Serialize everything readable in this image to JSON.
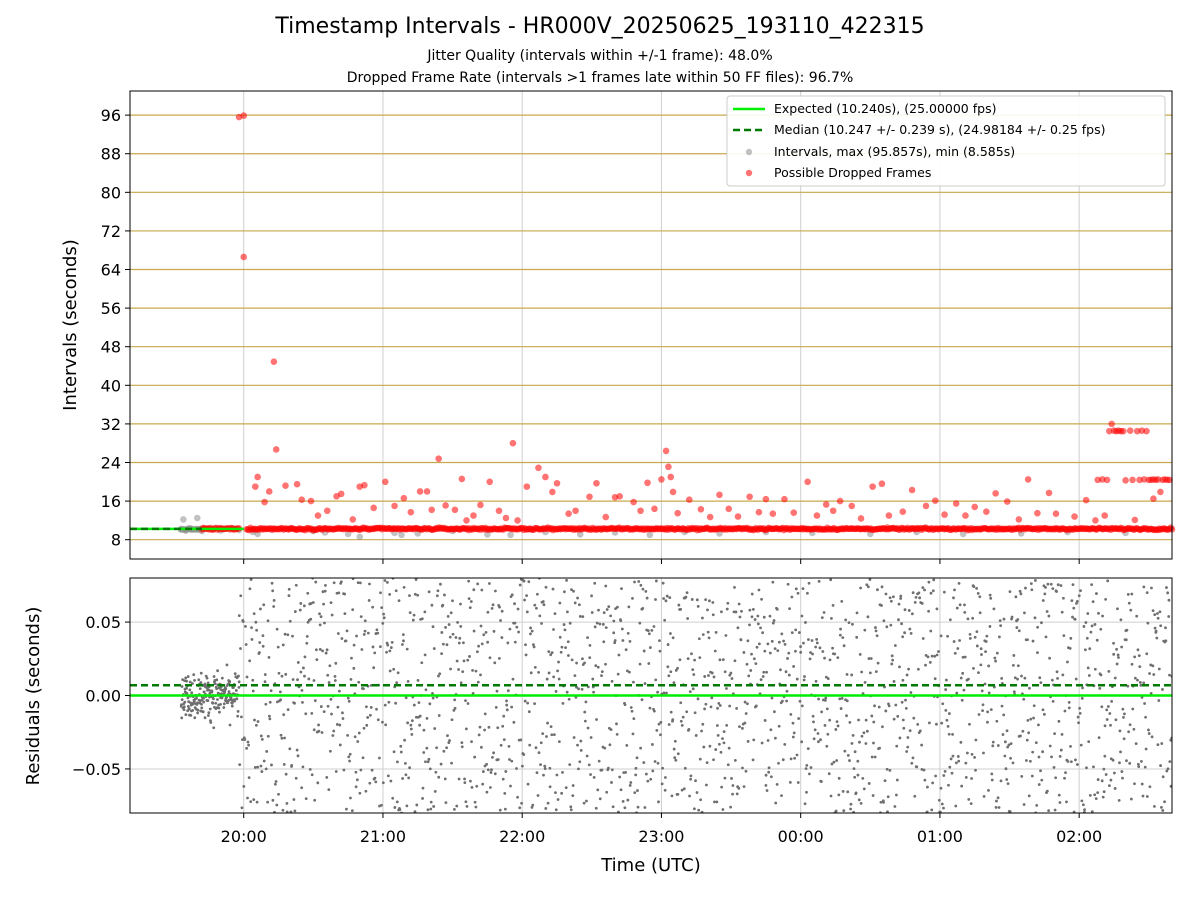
{
  "title": "Timestamp Intervals - HR000V_20250625_193110_422315",
  "subtitle_jitter": "Jitter Quality (intervals within +/-1 frame): 48.0%",
  "subtitle_dropped": "Dropped Frame Rate (intervals >1 frames late within 50 FF files): 96.7%",
  "colors": {
    "expected_line": "#00ee00",
    "median_line": "#007a00",
    "intervals_points": "#8f8f8f",
    "dropped_points": "#ff0000",
    "residual_points": "#6f6f6f",
    "grid_major": "#c8a84c",
    "grid_minor": "#cfcfcf"
  },
  "chart_data": [
    {
      "type": "scatter",
      "ylabel": "Intervals (seconds)",
      "ylim": [
        4,
        101
      ],
      "xlim": [
        "19:11",
        "02:40"
      ],
      "y_ticks": [
        8,
        16,
        24,
        32,
        40,
        48,
        56,
        64,
        72,
        80,
        88,
        96
      ],
      "x_ticks": [
        "20:00",
        "21:00",
        "22:00",
        "23:00",
        "00:00",
        "01:00",
        "02:00"
      ],
      "grid": true,
      "legend_position": "top-right",
      "legend": [
        {
          "label": "Expected (10.240s), (25.00000 fps)",
          "kind": "line-solid",
          "color": "#00ee00"
        },
        {
          "label": "Median (10.247 +/- 0.239 s), (24.98184 +/- 0.25 fps)",
          "kind": "line-dashed",
          "color": "#007a00"
        },
        {
          "label": "Intervals, max (95.857s), min (8.585s)",
          "kind": "dot",
          "color": "#8f8f8f"
        },
        {
          "label": "Possible Dropped Frames",
          "kind": "dot",
          "color": "#ff0000"
        }
      ],
      "expected_value": 10.24,
      "median_value": 10.247,
      "series": [
        {
          "name": "Intervals, max (95.857s), min (8.585s)",
          "points": [
            {
              "x": "19:33",
              "y": 10.1
            },
            {
              "x": "19:34",
              "y": 12.2
            },
            {
              "x": "19:35",
              "y": 9.9
            },
            {
              "x": "19:37",
              "y": 10.4
            },
            {
              "x": "19:40",
              "y": 12.5
            },
            {
              "x": "19:42",
              "y": 9.8
            },
            {
              "x": "19:46",
              "y": 10.2
            },
            {
              "x": "19:50",
              "y": 9.9
            },
            {
              "x": "19:55",
              "y": 10.3
            },
            {
              "x": "19:58",
              "y": 10.0
            },
            {
              "x": "20:04",
              "y": 9.6
            },
            {
              "x": "20:06",
              "y": 9.2
            },
            {
              "x": "20:20",
              "y": 10.3
            },
            {
              "x": "20:30",
              "y": 9.8
            },
            {
              "x": "20:35",
              "y": 9.5
            },
            {
              "x": "20:45",
              "y": 9.2
            },
            {
              "x": "20:50",
              "y": 8.6
            },
            {
              "x": "21:05",
              "y": 9.4
            },
            {
              "x": "21:08",
              "y": 9.0
            },
            {
              "x": "21:15",
              "y": 9.3
            },
            {
              "x": "21:30",
              "y": 9.8
            },
            {
              "x": "21:45",
              "y": 9.1
            },
            {
              "x": "21:55",
              "y": 9.0
            },
            {
              "x": "22:10",
              "y": 9.6
            },
            {
              "x": "22:25",
              "y": 9.1
            },
            {
              "x": "22:40",
              "y": 9.5
            },
            {
              "x": "22:55",
              "y": 9.0
            },
            {
              "x": "23:10",
              "y": 9.6
            },
            {
              "x": "23:25",
              "y": 9.3
            },
            {
              "x": "23:45",
              "y": 9.6
            },
            {
              "x": "00:05",
              "y": 9.4
            },
            {
              "x": "00:30",
              "y": 9.2
            },
            {
              "x": "00:50",
              "y": 9.6
            },
            {
              "x": "01:10",
              "y": 9.2
            },
            {
              "x": "01:35",
              "y": 9.3
            },
            {
              "x": "01:55",
              "y": 9.6
            },
            {
              "x": "02:20",
              "y": 9.4
            }
          ]
        },
        {
          "name": "Possible Dropped Frames",
          "band_y": 10.25,
          "band_from": "19:42",
          "band_to": "02:40",
          "points": [
            {
              "x": "19:58",
              "y": 95.6
            },
            {
              "x": "20:00",
              "y": 95.9
            },
            {
              "x": "20:00",
              "y": 66.6
            },
            {
              "x": "20:13",
              "y": 44.9
            },
            {
              "x": "20:14",
              "y": 26.7
            },
            {
              "x": "20:06",
              "y": 21.0
            },
            {
              "x": "20:05",
              "y": 19.0
            },
            {
              "x": "20:09",
              "y": 15.8
            },
            {
              "x": "20:11",
              "y": 18.0
            },
            {
              "x": "20:18",
              "y": 19.2
            },
            {
              "x": "20:23",
              "y": 19.5
            },
            {
              "x": "20:25",
              "y": 16.3
            },
            {
              "x": "20:29",
              "y": 16.0
            },
            {
              "x": "20:32",
              "y": 13.0
            },
            {
              "x": "20:36",
              "y": 14.0
            },
            {
              "x": "20:40",
              "y": 17.0
            },
            {
              "x": "20:42",
              "y": 17.5
            },
            {
              "x": "20:47",
              "y": 12.2
            },
            {
              "x": "20:50",
              "y": 19.0
            },
            {
              "x": "20:52",
              "y": 19.3
            },
            {
              "x": "20:56",
              "y": 14.6
            },
            {
              "x": "21:01",
              "y": 20.0
            },
            {
              "x": "21:05",
              "y": 15.0
            },
            {
              "x": "21:09",
              "y": 16.6
            },
            {
              "x": "21:12",
              "y": 13.7
            },
            {
              "x": "21:16",
              "y": 18.0
            },
            {
              "x": "21:19",
              "y": 18.0
            },
            {
              "x": "21:21",
              "y": 14.2
            },
            {
              "x": "21:24",
              "y": 24.8
            },
            {
              "x": "21:27",
              "y": 15.1
            },
            {
              "x": "21:31",
              "y": 14.2
            },
            {
              "x": "21:34",
              "y": 20.6
            },
            {
              "x": "21:36",
              "y": 12.0
            },
            {
              "x": "21:39",
              "y": 13.0
            },
            {
              "x": "21:42",
              "y": 15.2
            },
            {
              "x": "21:46",
              "y": 20.0
            },
            {
              "x": "21:50",
              "y": 14.0
            },
            {
              "x": "21:53",
              "y": 12.5
            },
            {
              "x": "21:56",
              "y": 28.0
            },
            {
              "x": "21:58",
              "y": 12.0
            },
            {
              "x": "22:02",
              "y": 19.0
            },
            {
              "x": "22:07",
              "y": 22.9
            },
            {
              "x": "22:10",
              "y": 21.0
            },
            {
              "x": "22:13",
              "y": 17.9
            },
            {
              "x": "22:15",
              "y": 19.7
            },
            {
              "x": "22:20",
              "y": 13.4
            },
            {
              "x": "22:23",
              "y": 14.0
            },
            {
              "x": "22:29",
              "y": 16.9
            },
            {
              "x": "22:32",
              "y": 19.7
            },
            {
              "x": "22:36",
              "y": 12.7
            },
            {
              "x": "22:40",
              "y": 16.8
            },
            {
              "x": "22:42",
              "y": 17.0
            },
            {
              "x": "22:48",
              "y": 15.8
            },
            {
              "x": "22:51",
              "y": 14.0
            },
            {
              "x": "22:54",
              "y": 19.8
            },
            {
              "x": "22:57",
              "y": 14.4
            },
            {
              "x": "23:00",
              "y": 20.5
            },
            {
              "x": "23:02",
              "y": 26.4
            },
            {
              "x": "23:03",
              "y": 23.1
            },
            {
              "x": "23:04",
              "y": 21.0
            },
            {
              "x": "23:05",
              "y": 17.9
            },
            {
              "x": "23:07",
              "y": 13.5
            },
            {
              "x": "23:12",
              "y": 16.3
            },
            {
              "x": "23:17",
              "y": 14.3
            },
            {
              "x": "23:21",
              "y": 12.7
            },
            {
              "x": "23:25",
              "y": 17.3
            },
            {
              "x": "23:29",
              "y": 14.4
            },
            {
              "x": "23:33",
              "y": 12.8
            },
            {
              "x": "23:38",
              "y": 16.9
            },
            {
              "x": "23:42",
              "y": 13.7
            },
            {
              "x": "23:45",
              "y": 16.4
            },
            {
              "x": "23:48",
              "y": 13.4
            },
            {
              "x": "23:53",
              "y": 16.4
            },
            {
              "x": "23:57",
              "y": 13.6
            },
            {
              "x": "00:03",
              "y": 20.0
            },
            {
              "x": "00:07",
              "y": 13.0
            },
            {
              "x": "00:11",
              "y": 15.3
            },
            {
              "x": "00:14",
              "y": 14.0
            },
            {
              "x": "00:17",
              "y": 16.0
            },
            {
              "x": "00:22",
              "y": 15.0
            },
            {
              "x": "00:26",
              "y": 12.4
            },
            {
              "x": "00:31",
              "y": 19.0
            },
            {
              "x": "00:35",
              "y": 19.6
            },
            {
              "x": "00:38",
              "y": 13.0
            },
            {
              "x": "00:44",
              "y": 13.8
            },
            {
              "x": "00:48",
              "y": 18.3
            },
            {
              "x": "00:54",
              "y": 15.0
            },
            {
              "x": "00:58",
              "y": 16.1
            },
            {
              "x": "01:02",
              "y": 13.2
            },
            {
              "x": "01:07",
              "y": 15.5
            },
            {
              "x": "01:11",
              "y": 13.0
            },
            {
              "x": "01:15",
              "y": 14.8
            },
            {
              "x": "01:20",
              "y": 13.8
            },
            {
              "x": "01:24",
              "y": 17.6
            },
            {
              "x": "01:29",
              "y": 15.9
            },
            {
              "x": "01:34",
              "y": 12.2
            },
            {
              "x": "01:38",
              "y": 20.5
            },
            {
              "x": "01:42",
              "y": 13.5
            },
            {
              "x": "01:47",
              "y": 17.7
            },
            {
              "x": "01:50",
              "y": 13.4
            },
            {
              "x": "01:58",
              "y": 12.8
            },
            {
              "x": "02:03",
              "y": 16.2
            },
            {
              "x": "02:07",
              "y": 12.0
            },
            {
              "x": "02:08",
              "y": 20.4
            },
            {
              "x": "02:10",
              "y": 20.5
            },
            {
              "x": "02:12",
              "y": 20.4
            },
            {
              "x": "02:13",
              "y": 30.5
            },
            {
              "x": "02:14",
              "y": 32.0
            },
            {
              "x": "02:15",
              "y": 30.6
            },
            {
              "x": "02:16",
              "y": 30.5
            },
            {
              "x": "02:17",
              "y": 30.6
            },
            {
              "x": "02:18",
              "y": 30.5
            },
            {
              "x": "02:19",
              "y": 30.5
            },
            {
              "x": "02:20",
              "y": 20.3
            },
            {
              "x": "02:22",
              "y": 30.6
            },
            {
              "x": "02:23",
              "y": 20.4
            },
            {
              "x": "02:25",
              "y": 30.5
            },
            {
              "x": "02:26",
              "y": 20.4
            },
            {
              "x": "02:27",
              "y": 30.6
            },
            {
              "x": "02:28",
              "y": 20.5
            },
            {
              "x": "02:29",
              "y": 30.5
            },
            {
              "x": "02:30",
              "y": 20.4
            },
            {
              "x": "02:31",
              "y": 20.4
            },
            {
              "x": "02:32",
              "y": 20.5
            },
            {
              "x": "02:33",
              "y": 20.4
            },
            {
              "x": "02:34",
              "y": 20.5
            },
            {
              "x": "02:35",
              "y": 17.9
            },
            {
              "x": "02:36",
              "y": 20.4
            },
            {
              "x": "02:37",
              "y": 20.5
            },
            {
              "x": "02:38",
              "y": 20.4
            },
            {
              "x": "02:39",
              "y": 20.4
            },
            {
              "x": "02:32",
              "y": 16.5
            },
            {
              "x": "02:24",
              "y": 12.1
            },
            {
              "x": "02:11",
              "y": 13.0
            }
          ]
        }
      ]
    },
    {
      "type": "scatter",
      "xlabel": "Time (UTC)",
      "ylabel": "Residuals (seconds)",
      "ylim": [
        -0.08,
        0.08
      ],
      "xlim": [
        "19:11",
        "02:40"
      ],
      "y_ticks": [
        -0.05,
        0.0,
        0.05
      ],
      "y_tick_labels": [
        "−0.05",
        "0.00",
        "0.05"
      ],
      "x_ticks": [
        "20:00",
        "21:00",
        "22:00",
        "23:00",
        "00:00",
        "01:00",
        "02:00"
      ],
      "grid": true,
      "expected_value": 0.0,
      "median_value": 0.007,
      "series": [
        {
          "name": "Residuals",
          "distribution": "dense scatter of several thousand points; approx. within ±0.02 s between 19:33 and 19:58, then spread across ±0.08 s through 02:40",
          "dense_from": "19:33",
          "dense_to": "02:40",
          "early_to": "19:58",
          "early_spread": 0.022,
          "late_spread": 0.08
        }
      ]
    }
  ]
}
